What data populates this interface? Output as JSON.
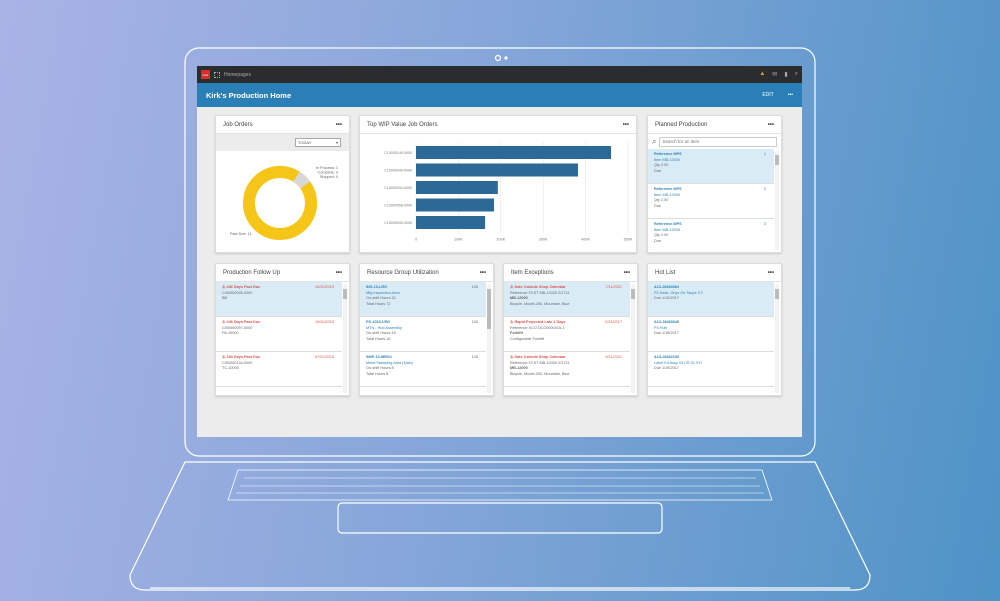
{
  "topbar": {
    "context": "Homepages",
    "icons": [
      "alert-icon",
      "mail-icon",
      "bookmark-icon",
      "search-icon"
    ]
  },
  "header": {
    "title": "Kirk's Production Home",
    "edit": "EDIT",
    "more": "•••"
  },
  "job_orders": {
    "title": "Job Orders",
    "more": "•••",
    "filter": "TODAY",
    "legend": [
      "In Process: 1",
      "Complete: 0",
      "Stopped: 0"
    ],
    "past_due": "Past Due: 11",
    "colors": {
      "past_due": "#f5c518",
      "in_process": "#d8d8d8"
    },
    "values": {
      "past_due": 11,
      "in_process": 1,
      "complete": 0,
      "stopped": 0
    }
  },
  "chart_data": {
    "type": "bar",
    "orientation": "horizontal",
    "title": "Top WIP Value Job Orders",
    "categories": [
      "CL0000149-0000",
      "CL0000049-0000",
      "CL0000044-0000",
      "CL0000058-0000",
      "CL0000043-0000"
    ],
    "values": [
      460000,
      382000,
      193000,
      184000,
      163000
    ],
    "xlim": [
      0,
      500000
    ],
    "xticks": [
      "0",
      "100K",
      "200K",
      "300K",
      "400K",
      "500K"
    ],
    "grid": true,
    "color": "#2b6a96"
  },
  "wip": {
    "title": "Top WIP Value Job Orders",
    "more": "•••"
  },
  "planned": {
    "title": "Planned Production",
    "more": "•••",
    "search_placeholder": "Search for an item",
    "items": [
      {
        "ref": "Reference   MPS",
        "num": "1",
        "item": "Item    MB-12000",
        "qty": "Qty   2.00",
        "due": "Due"
      },
      {
        "ref": "Reference   MPS",
        "num": "2",
        "item": "Item    MB-12000",
        "qty": "Qty   2.00",
        "due": "Due"
      },
      {
        "ref": "Reference   MPS",
        "num": "3",
        "item": "Item    MB-12000",
        "qty": "Qty   2.00",
        "due": "Due"
      }
    ]
  },
  "followup": {
    "title": "Production Follow Up",
    "more": "•••",
    "items": [
      {
        "days": "⚠ 446   Days Past Due",
        "date": "10/30/2015",
        "job": "CI00000095-0000",
        "item": "BB"
      },
      {
        "days": "⚠ 446   Days Past Due",
        "date": "10/30/2015",
        "job": "CI00000097-0000",
        "item": "PA-10000"
      },
      {
        "days": "⚠ 183   Days Past Due",
        "date": "07/22/2016",
        "job": "CI00000134-0000",
        "item": "TC-10000"
      }
    ]
  },
  "resource": {
    "title": "Resource Group Utilization",
    "more": "•••",
    "items": [
      {
        "code": "INS-10-LRG",
        "pct": "100",
        "name": "Mfg Inspection Area",
        "onshift": "On-shift Hours  32",
        "total": "Total Hours  72"
      },
      {
        "code": "PS-1010-LRG",
        "pct": "100",
        "name": "MTN - Hub Assembly",
        "onshift": "On-shift Hours  16",
        "total": "Total Hours  16"
      },
      {
        "code": "SMP-10-MRG1",
        "pct": "140",
        "name": "Metal Stamping Area (Main)",
        "onshift": "On-shift Hours  8",
        "total": "Total Hours  8"
      }
    ]
  },
  "exceptions": {
    "title": "Item Exceptions",
    "more": "•••",
    "items": [
      {
        "type": "⚠ Date Outside Shop Calendar",
        "date": "7/11/2021",
        "ref": "Reference   FCST MB-12000 2/2711",
        "item": "MB-12000",
        "desc": "Bicycle, Model-200, Mountain, Blue"
      },
      {
        "type": "⚠ Rapid Projected Late 1 Days",
        "date": "2/24/2017",
        "ref": "Reference   XCO DCO0000415-1",
        "item": "Forklift",
        "desc": "Configurable Forklift"
      },
      {
        "type": "⚠ Date Outside Shop Calendar",
        "date": "9/11/2021",
        "ref": "Reference   FCST MB-12000 2/2711",
        "item": "MB-12000",
        "desc": "Bicycle, Model-200, Mountain, Blue"
      }
    ]
  },
  "hotlist": {
    "title": "Hot List",
    "more": "•••",
    "items": [
      {
        "code": "A13-J8463062",
        "desc": "P3 Desk, Onyx Ge Taupe CY",
        "due": "Due   1/19/2017"
      },
      {
        "code": "A13-J8463040",
        "desc": "P3 Hutt",
        "due": "Due   1/18/2017"
      },
      {
        "code": "A13-J8462100",
        "desc": "Label Kit Assy 03 CR 51 SYI",
        "due": "Due   1/19/2017"
      }
    ]
  }
}
